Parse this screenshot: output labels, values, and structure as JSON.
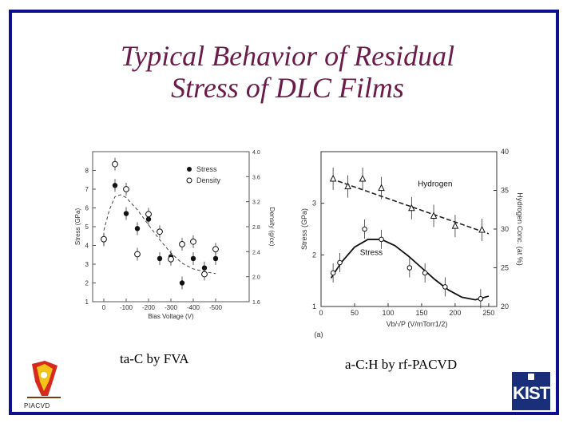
{
  "slide": {
    "title_line1": "Typical Behavior of Residual",
    "title_line2": "Stress of DLC Films",
    "caption_left": "ta-C by FVA",
    "caption_right": "a-C:H by rf-PACVD",
    "logo_left": "PIACVD",
    "logo_right": "KIST"
  },
  "colors": {
    "border": "#0e0f8e",
    "title": "#6b1a4a",
    "kist": "#1a2f7a"
  },
  "chart_data": [
    {
      "type": "scatter",
      "xlabel": "Bias Voltage (V)",
      "ylabel": "Stress (GPa)",
      "y2label": "Density (g/cc)",
      "xlim": [
        50,
        -650
      ],
      "ylim": [
        1,
        9
      ],
      "y2lim": [
        1.6,
        4.0
      ],
      "xticks": [
        "0",
        "-100",
        "-200",
        "-300",
        "-400",
        "-500"
      ],
      "xtick_values": [
        0,
        -100,
        -200,
        -300,
        -400,
        -500
      ],
      "yticks": [
        "1",
        "2",
        "3",
        "4",
        "5",
        "6",
        "7",
        "8"
      ],
      "ytick_values": [
        1,
        2,
        3,
        4,
        5,
        6,
        7,
        8
      ],
      "y2ticks": [
        "1.6",
        "2.0",
        "2.4",
        "2.8",
        "3.2",
        "3.6",
        "4.0"
      ],
      "y2tick_values": [
        1.6,
        2.0,
        2.4,
        2.8,
        3.2,
        3.6,
        4.0
      ],
      "legend": [
        "Stress",
        "Density"
      ],
      "legend_position": "top-right",
      "series": [
        {
          "name": "Stress",
          "marker": "filled",
          "x": [
            0,
            -50,
            -100,
            -150,
            -200,
            -250,
            -300,
            -350,
            -400,
            -450,
            -500
          ],
          "y": [
            4.3,
            7.2,
            5.7,
            4.9,
            5.4,
            3.3,
            3.4,
            2.0,
            3.3,
            2.8,
            3.3
          ]
        },
        {
          "name": "Density",
          "marker": "open",
          "axis": "right",
          "x": [
            0,
            -50,
            -100,
            -150,
            -200,
            -250,
            -300,
            -350,
            -400,
            -450,
            -500
          ],
          "y": [
            2.6,
            3.8,
            3.4,
            2.36,
            3.0,
            2.72,
            2.28,
            2.52,
            2.56,
            2.04,
            2.44
          ]
        }
      ],
      "fit_line": {
        "x": [
          0,
          -25,
          -50,
          -75,
          -100,
          -150,
          -200,
          -250,
          -300,
          -350,
          -400,
          -450,
          -500
        ],
        "y": [
          4.8,
          5.9,
          6.6,
          6.7,
          6.55,
          5.9,
          5.1,
          4.3,
          3.6,
          3.05,
          2.75,
          2.6,
          2.5
        ]
      }
    },
    {
      "type": "scatter",
      "panel_label": "(a)",
      "xlabel": "Vb/√P  (V/mTorr1/2)",
      "ylabel": "Stress  (GPa)",
      "y2label": "Hydrogen  Conc.  (at %)",
      "xlim": [
        0,
        262
      ],
      "ylim": [
        1,
        4
      ],
      "y2lim": [
        20,
        40
      ],
      "xticks": [
        "0",
        "50",
        "100",
        "150",
        "200",
        "250"
      ],
      "xtick_values": [
        0,
        50,
        100,
        150,
        200,
        250
      ],
      "yticks": [
        "1",
        "2",
        "3"
      ],
      "ytick_values": [
        1,
        2,
        3
      ],
      "y2ticks": [
        "20",
        "25",
        "30",
        "35",
        "40"
      ],
      "y2tick_values": [
        20,
        25,
        30,
        35,
        40
      ],
      "annotations": [
        "Hydrogen",
        "Stress"
      ],
      "series": [
        {
          "name": "Hydrogen",
          "marker": "triangle",
          "axis": "right",
          "x": [
            18,
            40,
            62,
            90,
            135,
            168,
            200,
            240
          ],
          "y": [
            36.5,
            35.5,
            36.5,
            35.3,
            32.7,
            31.7,
            30.4,
            29.9
          ]
        },
        {
          "name": "Stress",
          "marker": "circle",
          "x": [
            18,
            28,
            65,
            90,
            132,
            155,
            185,
            238
          ],
          "y": [
            1.65,
            1.85,
            2.5,
            2.3,
            1.75,
            1.65,
            1.38,
            1.15
          ]
        }
      ],
      "fit_hydrogen": {
        "x": [
          15,
          250
        ],
        "y": [
          36.5,
          29.4
        ]
      },
      "fit_stress": {
        "x": [
          15,
          30,
          50,
          70,
          90,
          110,
          130,
          150,
          170,
          190,
          210,
          230,
          250
        ],
        "y": [
          1.55,
          1.85,
          2.15,
          2.3,
          2.3,
          2.18,
          1.98,
          1.75,
          1.52,
          1.32,
          1.18,
          1.13,
          1.2
        ]
      }
    }
  ]
}
